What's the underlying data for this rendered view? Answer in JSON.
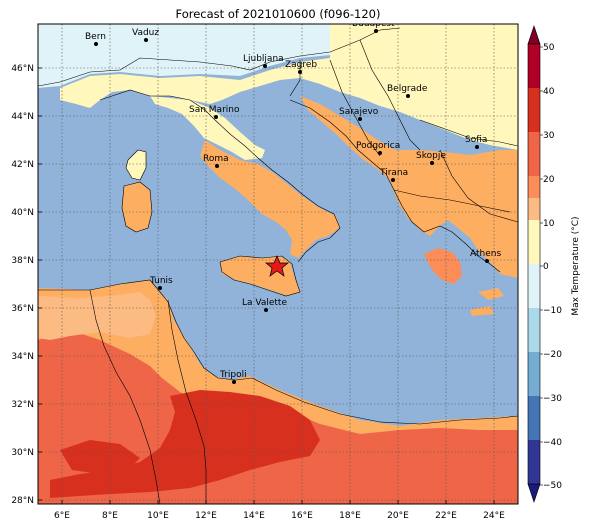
{
  "title": "Forecast of 2021010600 (f096-120)",
  "colorbar": {
    "label": "Max Temperature (°C)",
    "ticks": [
      "50",
      "40",
      "30",
      "20",
      "10",
      "0",
      "−10",
      "−20",
      "−30",
      "−40",
      "−50"
    ],
    "colors": [
      "#800026",
      "#b10026",
      "#d7301f",
      "#ef6548",
      "#fc8d59",
      "#fdbb84",
      "#fff7bc",
      "#e0f3f8",
      "#abd9e9",
      "#74add1",
      "#4575b4",
      "#313695",
      "#1a1a7a"
    ]
  },
  "axes": {
    "lon_ticks": [
      "6°E",
      "8°E",
      "10°E",
      "12°E",
      "14°E",
      "16°E",
      "18°E",
      "20°E",
      "22°E",
      "24°E"
    ],
    "lat_ticks": [
      "46°N",
      "44°N",
      "42°N",
      "40°N",
      "38°N",
      "36°N",
      "34°N",
      "32°N",
      "30°N",
      "28°N"
    ]
  },
  "cities": [
    {
      "name": "Bern"
    },
    {
      "name": "Vaduz"
    },
    {
      "name": "Budapest"
    },
    {
      "name": "Ljubljana"
    },
    {
      "name": "Zagreb"
    },
    {
      "name": "Belgrade"
    },
    {
      "name": "San Marino"
    },
    {
      "name": "Sarajevo"
    },
    {
      "name": "Sofia"
    },
    {
      "name": "Podgorica"
    },
    {
      "name": "Skopje"
    },
    {
      "name": "Roma"
    },
    {
      "name": "Tirana"
    },
    {
      "name": "Athens"
    },
    {
      "name": "Tunis"
    },
    {
      "name": "La Valette"
    },
    {
      "name": "Tripoli"
    }
  ],
  "marker": {
    "name": "Forecast point star",
    "color": "#e31a1c"
  }
}
